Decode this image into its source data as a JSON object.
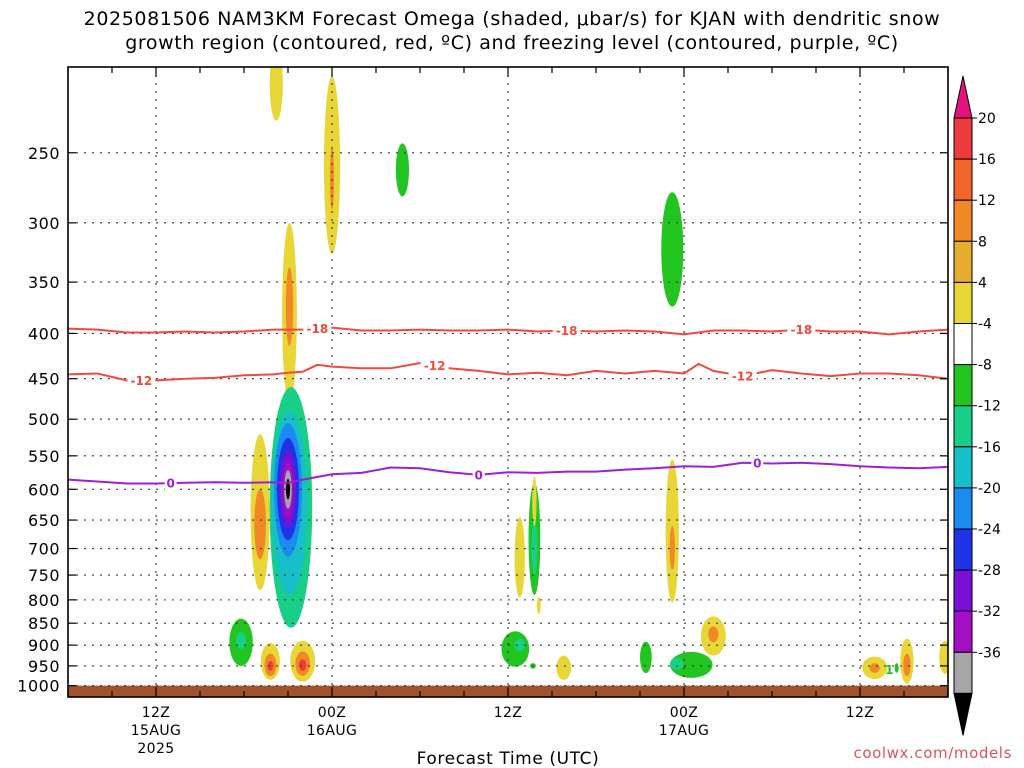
{
  "title": {
    "line1": "2025081506 NAM3KM Forecast Omega (shaded, μbar/s) for KJAN with dendritic snow",
    "line2": "growth region (contoured, red, ºC) and freezing level (contoured, purple, ºC)"
  },
  "credit": "coolwx.com/models",
  "chart_data": {
    "type": "heatmap",
    "xlabel": "Forecast Time (UTC)",
    "ylabel": "",
    "x_ticks": [
      {
        "hour": 6,
        "label": "12Z",
        "sub1": "15AUG",
        "sub2": "2025"
      },
      {
        "hour": 18,
        "label": "00Z",
        "sub1": "16AUG",
        "sub2": ""
      },
      {
        "hour": 30,
        "label": "12Z",
        "sub1": "",
        "sub2": ""
      },
      {
        "hour": 42,
        "label": "00Z",
        "sub1": "17AUG",
        "sub2": ""
      },
      {
        "hour": 54,
        "label": "12Z",
        "sub1": "",
        "sub2": ""
      }
    ],
    "xlim_hours": [
      0,
      60
    ],
    "ylim_hPa": [
      1030,
      200
    ],
    "y_scale": "log",
    "y_ticks": [
      250,
      300,
      350,
      400,
      450,
      500,
      550,
      600,
      650,
      700,
      750,
      800,
      850,
      900,
      950,
      1000
    ],
    "grid": true,
    "ground_color": "#a0522d",
    "colorbar": {
      "ticks": [
        20,
        16,
        12,
        8,
        4,
        -4,
        -8,
        -12,
        -16,
        -20,
        -24,
        -28,
        -32,
        -36
      ],
      "colors": [
        "#ee3b3b",
        "#f4652e",
        "#f08826",
        "#e6ae2e",
        "#e8d536",
        "#ffffff",
        "#22c41f",
        "#17cf86",
        "#16bfc9",
        "#1c8bf0",
        "#1e32e8",
        "#7a0fd8",
        "#a30fc4",
        "#a6a6a6"
      ],
      "top_arrow_color": "#e3127c",
      "bottom_arrow_color": "#000000"
    },
    "omega_blobs": [
      {
        "t": 14.2,
        "p": 210,
        "dt": 0.45,
        "dp": 20,
        "value": 5
      },
      {
        "t": 18.0,
        "p": 265,
        "dt": 0.55,
        "dp": 60,
        "value": 6
      },
      {
        "t": 18.0,
        "p": 268,
        "dt": 0.1,
        "dp": 22,
        "value": 8
      },
      {
        "t": 22.8,
        "p": 262,
        "dt": 0.45,
        "dp": 18,
        "value": -6
      },
      {
        "t": 15.1,
        "p": 390,
        "dt": 0.5,
        "dp": 90,
        "value": 6
      },
      {
        "t": 15.1,
        "p": 375,
        "dt": 0.25,
        "dp": 38,
        "value": 9
      },
      {
        "t": 13.1,
        "p": 650,
        "dt": 0.65,
        "dp": 130,
        "value": 6
      },
      {
        "t": 13.1,
        "p": 660,
        "dt": 0.4,
        "dp": 60,
        "value": 10
      },
      {
        "t": 15.2,
        "p": 660,
        "dt": 1.45,
        "dp": 200,
        "value": -8
      },
      {
        "t": 15.1,
        "p": 640,
        "dt": 1.2,
        "dp": 150,
        "value": -12
      },
      {
        "t": 15.0,
        "p": 610,
        "dt": 0.95,
        "dp": 105,
        "value": -16
      },
      {
        "t": 15.0,
        "p": 605,
        "dt": 0.75,
        "dp": 80,
        "value": -20
      },
      {
        "t": 15.0,
        "p": 603,
        "dt": 0.55,
        "dp": 60,
        "value": -24
      },
      {
        "t": 15.0,
        "p": 602,
        "dt": 0.38,
        "dp": 42,
        "value": -28
      },
      {
        "t": 15.0,
        "p": 601,
        "dt": 0.26,
        "dp": 30,
        "value": -32
      },
      {
        "t": 15.0,
        "p": 600,
        "dt": 0.14,
        "dp": 16,
        "value": -40
      },
      {
        "t": 11.8,
        "p": 895,
        "dt": 0.8,
        "dp": 55,
        "value": -6
      },
      {
        "t": 11.8,
        "p": 890,
        "dt": 0.35,
        "dp": 20,
        "value": -9
      },
      {
        "t": 13.8,
        "p": 940,
        "dt": 0.65,
        "dp": 45,
        "value": 5
      },
      {
        "t": 13.8,
        "p": 948,
        "dt": 0.4,
        "dp": 28,
        "value": 11
      },
      {
        "t": 13.8,
        "p": 950,
        "dt": 0.2,
        "dp": 12,
        "value": 17
      },
      {
        "t": 16.0,
        "p": 940,
        "dt": 0.85,
        "dp": 50,
        "value": 5
      },
      {
        "t": 16.0,
        "p": 945,
        "dt": 0.5,
        "dp": 30,
        "value": 11
      },
      {
        "t": 16.0,
        "p": 948,
        "dt": 0.25,
        "dp": 14,
        "value": 17
      },
      {
        "t": 30.8,
        "p": 720,
        "dt": 0.35,
        "dp": 75,
        "value": 6
      },
      {
        "t": 31.8,
        "p": 690,
        "dt": 0.4,
        "dp": 100,
        "value": -6
      },
      {
        "t": 31.8,
        "p": 700,
        "dt": 0.2,
        "dp": 50,
        "value": -10
      },
      {
        "t": 31.8,
        "p": 620,
        "dt": 0.15,
        "dp": 40,
        "value": 5
      },
      {
        "t": 32.1,
        "p": 812,
        "dt": 0.12,
        "dp": 18,
        "value": 5
      },
      {
        "t": 41.2,
        "p": 325,
        "dt": 0.75,
        "dp": 48,
        "value": -6
      },
      {
        "t": 41.2,
        "p": 680,
        "dt": 0.45,
        "dp": 125,
        "value": 6
      },
      {
        "t": 41.2,
        "p": 700,
        "dt": 0.18,
        "dp": 40,
        "value": 9
      },
      {
        "t": 44.0,
        "p": 880,
        "dt": 0.85,
        "dp": 45,
        "value": 6
      },
      {
        "t": 44.0,
        "p": 875,
        "dt": 0.35,
        "dp": 18,
        "value": 9
      },
      {
        "t": 30.5,
        "p": 910,
        "dt": 0.95,
        "dp": 42,
        "value": -6
      },
      {
        "t": 30.8,
        "p": 900,
        "dt": 0.35,
        "dp": 15,
        "value": -9
      },
      {
        "t": 31.7,
        "p": 950,
        "dt": 0.2,
        "dp": 7,
        "value": -6
      },
      {
        "t": 33.8,
        "p": 955,
        "dt": 0.5,
        "dp": 30,
        "value": 6
      },
      {
        "t": 39.4,
        "p": 930,
        "dt": 0.4,
        "dp": 38,
        "value": -6
      },
      {
        "t": 42.5,
        "p": 948,
        "dt": 1.45,
        "dp": 32,
        "value": -6
      },
      {
        "t": 41.5,
        "p": 945,
        "dt": 0.45,
        "dp": 15,
        "value": -9
      },
      {
        "t": 55.0,
        "p": 955,
        "dt": 0.85,
        "dp": 28,
        "value": 6
      },
      {
        "t": 55.0,
        "p": 955,
        "dt": 0.35,
        "dp": 12,
        "value": 9
      },
      {
        "t": 57.2,
        "p": 940,
        "dt": 0.45,
        "dp": 55,
        "value": 6
      },
      {
        "t": 57.2,
        "p": 948,
        "dt": 0.25,
        "dp": 28,
        "value": 10
      },
      {
        "t": 59.8,
        "p": 930,
        "dt": 0.4,
        "dp": 40,
        "value": 6
      },
      {
        "t": 56.5,
        "p": 955,
        "dt": 0.1,
        "dp": 12,
        "value": -6
      }
    ],
    "contours": [
      {
        "name": "-18",
        "color": "#f04a3c",
        "labels": "-18",
        "points": [
          [
            0,
            395
          ],
          [
            2,
            396
          ],
          [
            4,
            399
          ],
          [
            6,
            399
          ],
          [
            8,
            398
          ],
          [
            10,
            399
          ],
          [
            12,
            398
          ],
          [
            14,
            396
          ],
          [
            15,
            396
          ],
          [
            16,
            396
          ],
          [
            18,
            394
          ],
          [
            20,
            397
          ],
          [
            22,
            397
          ],
          [
            24,
            396
          ],
          [
            26,
            397
          ],
          [
            28,
            397
          ],
          [
            30,
            396
          ],
          [
            32,
            398
          ],
          [
            34,
            397
          ],
          [
            36,
            398
          ],
          [
            38,
            397
          ],
          [
            40,
            398
          ],
          [
            42,
            401
          ],
          [
            44,
            397
          ],
          [
            46,
            397
          ],
          [
            48,
            398
          ],
          [
            50,
            396
          ],
          [
            52,
            398
          ],
          [
            54,
            398
          ],
          [
            56,
            401
          ],
          [
            58,
            398
          ],
          [
            60,
            396
          ]
        ],
        "label_at_hours": [
          17,
          34,
          50
        ]
      },
      {
        "name": "-12",
        "color": "#f04a3c",
        "labels": "-12",
        "points": [
          [
            0,
            445
          ],
          [
            2,
            444
          ],
          [
            4,
            452
          ],
          [
            6,
            452
          ],
          [
            8,
            450
          ],
          [
            10,
            449
          ],
          [
            12,
            446
          ],
          [
            14,
            445
          ],
          [
            15,
            443
          ],
          [
            16,
            442
          ],
          [
            17,
            434
          ],
          [
            18,
            436
          ],
          [
            20,
            438
          ],
          [
            22,
            438
          ],
          [
            24,
            432
          ],
          [
            26,
            438
          ],
          [
            28,
            441
          ],
          [
            30,
            445
          ],
          [
            32,
            443
          ],
          [
            34,
            446
          ],
          [
            36,
            441
          ],
          [
            38,
            444
          ],
          [
            40,
            441
          ],
          [
            42,
            444
          ],
          [
            43,
            433
          ],
          [
            44,
            441
          ],
          [
            46,
            447
          ],
          [
            48,
            440
          ],
          [
            50,
            444
          ],
          [
            52,
            447
          ],
          [
            54,
            444
          ],
          [
            56,
            444
          ],
          [
            58,
            446
          ],
          [
            60,
            450
          ]
        ],
        "label_at_hours": [
          5,
          25,
          46
        ]
      },
      {
        "name": "0",
        "color": "#9f1fd0",
        "labels": "0",
        "points": [
          [
            0,
            585
          ],
          [
            2,
            588
          ],
          [
            4,
            591
          ],
          [
            6,
            591
          ],
          [
            8,
            590
          ],
          [
            10,
            589
          ],
          [
            12,
            590
          ],
          [
            14,
            589
          ],
          [
            15,
            590
          ],
          [
            16,
            585
          ],
          [
            18,
            577
          ],
          [
            20,
            575
          ],
          [
            22,
            567
          ],
          [
            24,
            568
          ],
          [
            26,
            574
          ],
          [
            28,
            578
          ],
          [
            30,
            574
          ],
          [
            32,
            575
          ],
          [
            34,
            573
          ],
          [
            36,
            573
          ],
          [
            38,
            570
          ],
          [
            40,
            568
          ],
          [
            42,
            565
          ],
          [
            44,
            566
          ],
          [
            46,
            560
          ],
          [
            48,
            561
          ],
          [
            50,
            560
          ],
          [
            52,
            562
          ],
          [
            54,
            565
          ],
          [
            56,
            567
          ],
          [
            58,
            568
          ],
          [
            60,
            566
          ]
        ],
        "label_at_hours": [
          7,
          28,
          47
        ]
      }
    ],
    "misc_labels": [
      {
        "text": "1",
        "hour": 56.0,
        "p": 960,
        "color": "#22c41f"
      }
    ]
  }
}
